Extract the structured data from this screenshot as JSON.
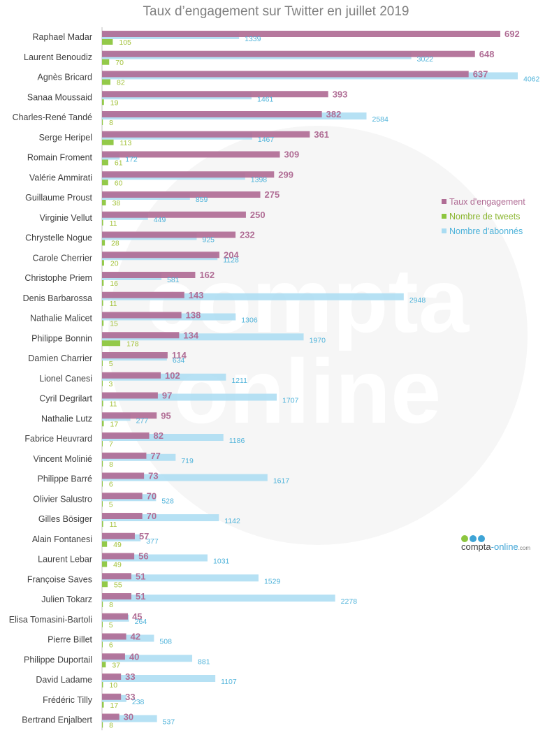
{
  "title": "Taux d’engagement sur Twitter en juillet 2019",
  "logo": {
    "name": "compta",
    "accent": "-online",
    "tld": ".com",
    "dot_colors": [
      "#8dc63f",
      "#3fa4d6",
      "#3fa4d6"
    ]
  },
  "watermark": {
    "line1": "compta",
    "line2": "online"
  },
  "colors": {
    "engagement": "#b06d95",
    "tweets": "#8dc63f",
    "abonnes": "#a9dcf2"
  },
  "chart_data": {
    "type": "bar",
    "orientation": "horizontal",
    "title": "Taux d’engagement sur Twitter en juillet 2019",
    "legend_position": "right",
    "grid": false,
    "categories": [
      "Raphael Madar",
      "Laurent Benoudiz",
      "Agnès Bricard",
      "Sanaa Moussaid",
      "Charles-René Tandé",
      "Serge Heripel",
      "Romain Froment",
      "Valérie Ammirati",
      "Guillaume Proust",
      "Virginie Vellut",
      "Chrystelle Nogue",
      "Carole Cherrier",
      "Christophe Priem",
      "Denis Barbarossa",
      "Nathalie Malicet",
      "Philippe Bonnin",
      "Damien Charrier",
      "Lionel Canesi",
      "Cyril Degrilart",
      "Nathalie Lutz",
      "Fabrice Heuvrard",
      "Vincent Molinié",
      "Philippe Barré",
      "Olivier Salustro",
      "Gilles Bösiger",
      "Alain Fontanesi",
      "Laurent Lebar",
      "Françoise Saves",
      "Julien Tokarz",
      "Elisa Tomasini-Bartoli",
      "Pierre Billet",
      "Philippe Duportail",
      "David Ladame",
      "Frédéric Tilly",
      "Bertrand Enjalbert"
    ],
    "series": [
      {
        "name": "Taux d'engagement",
        "color": "#b06d95",
        "values": [
          692,
          648,
          637,
          393,
          382,
          361,
          309,
          299,
          275,
          250,
          232,
          204,
          162,
          143,
          138,
          134,
          114,
          102,
          97,
          95,
          82,
          77,
          73,
          70,
          70,
          57,
          56,
          51,
          51,
          45,
          42,
          40,
          33,
          33,
          30
        ]
      },
      {
        "name": "Nombre de tweets",
        "color": "#8dc63f",
        "values": [
          105,
          70,
          82,
          19,
          8,
          113,
          61,
          60,
          38,
          11,
          28,
          20,
          16,
          11,
          15,
          178,
          5,
          3,
          11,
          17,
          7,
          8,
          6,
          5,
          11,
          49,
          49,
          55,
          8,
          5,
          6,
          37,
          10,
          17,
          8
        ]
      },
      {
        "name": "Nombre d'abonnés",
        "color": "#a9dcf2",
        "values": [
          1339,
          3022,
          4062,
          1461,
          2584,
          1467,
          172,
          1398,
          859,
          449,
          925,
          1128,
          581,
          2948,
          1306,
          1970,
          634,
          1211,
          1707,
          277,
          1186,
          719,
          1617,
          528,
          1142,
          377,
          1031,
          1529,
          2278,
          264,
          508,
          881,
          1107,
          238,
          537
        ]
      }
    ]
  }
}
